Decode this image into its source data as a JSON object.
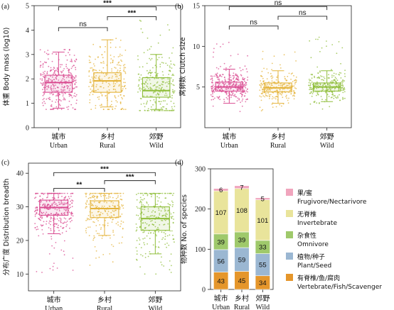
{
  "colors": {
    "urban": "#d94a90",
    "rural": "#e4b33a",
    "wild": "#8fbe3a"
  },
  "chart_data": [
    {
      "panel": "(a)",
      "type": "box",
      "ylabel": "体重 Body mass (log10)",
      "ylim": [
        0,
        5
      ],
      "yticks": [
        0,
        1,
        2,
        3,
        4,
        5
      ],
      "categories": [
        {
          "cn": "城市",
          "en": "Urban"
        },
        {
          "cn": "乡村",
          "en": "Rural"
        },
        {
          "cn": "郊野",
          "en": "Wild"
        }
      ],
      "boxes": [
        {
          "q1": 1.45,
          "median": 1.85,
          "q3": 2.15,
          "min": 0.8,
          "max": 3.1
        },
        {
          "q1": 1.45,
          "median": 1.92,
          "q3": 2.25,
          "min": 0.85,
          "max": 3.6
        },
        {
          "q1": 1.25,
          "median": 1.52,
          "q3": 2.05,
          "min": 0.75,
          "max": 3.0
        }
      ],
      "spread": [
        [
          0.75,
          3.2
        ],
        [
          0.75,
          3.7
        ],
        [
          0.7,
          4.8
        ]
      ],
      "points": [
        320,
        240,
        260
      ],
      "comparisons": [
        {
          "a": 0,
          "b": 1,
          "label": "ns",
          "y": 4.1
        },
        {
          "a": 1,
          "b": 2,
          "label": "***",
          "y": 4.55
        },
        {
          "a": 0,
          "b": 2,
          "label": "***",
          "y": 4.95
        }
      ]
    },
    {
      "panel": "(b)",
      "type": "box",
      "ylabel": "窝卵数 Clutch size",
      "ylim": [
        0,
        15
      ],
      "yticks": [
        5,
        10,
        15
      ],
      "categories": [
        {
          "cn": "城市",
          "en": "Urban"
        },
        {
          "cn": "乡村",
          "en": "Rural"
        },
        {
          "cn": "郊野",
          "en": "Wild"
        }
      ],
      "boxes": [
        {
          "q1": 4.5,
          "median": 5.0,
          "q3": 5.6,
          "min": 3.0,
          "max": 7.2
        },
        {
          "q1": 4.4,
          "median": 4.9,
          "q3": 5.5,
          "min": 3.0,
          "max": 7.0
        },
        {
          "q1": 4.5,
          "median": 5.0,
          "q3": 5.5,
          "min": 3.2,
          "max": 7.0
        }
      ],
      "spread": [
        [
          2.0,
          10.5
        ],
        [
          2.0,
          9.5
        ],
        [
          2.0,
          11.5
        ]
      ],
      "points": [
        320,
        240,
        260
      ],
      "comparisons": [
        {
          "a": 0,
          "b": 1,
          "label": "ns",
          "y": 12.5
        },
        {
          "a": 1,
          "b": 2,
          "label": "ns",
          "y": 13.7
        },
        {
          "a": 0,
          "b": 2,
          "label": "ns",
          "y": 14.9
        }
      ]
    },
    {
      "panel": "(c)",
      "type": "box",
      "ylabel": "分布广度 Distribution breadth",
      "ylim": [
        5,
        43
      ],
      "yticks": [
        10,
        20,
        30,
        40
      ],
      "categories": [
        {
          "cn": "城市",
          "en": "Urban"
        },
        {
          "cn": "乡村",
          "en": "Rural"
        },
        {
          "cn": "郊野",
          "en": "Wild"
        }
      ],
      "boxes": [
        {
          "q1": 27.5,
          "median": 29.8,
          "q3": 32.0,
          "min": 22.0,
          "max": 34.0
        },
        {
          "q1": 26.8,
          "median": 29.5,
          "q3": 31.8,
          "min": 21.5,
          "max": 34.0
        },
        {
          "q1": 23.0,
          "median": 26.5,
          "q3": 30.0,
          "min": 16.0,
          "max": 34.0
        }
      ],
      "spread": [
        [
          10,
          34
        ],
        [
          12,
          34
        ],
        [
          10,
          34
        ]
      ],
      "points": [
        320,
        240,
        260
      ],
      "comparisons": [
        {
          "a": 0,
          "b": 1,
          "label": "**",
          "y": 35.5
        },
        {
          "a": 1,
          "b": 2,
          "label": "***",
          "y": 37.8
        },
        {
          "a": 0,
          "b": 2,
          "label": "***",
          "y": 40.2
        }
      ]
    },
    {
      "panel": "(d)",
      "type": "stacked_bar",
      "ylabel": "物种数 No. of species",
      "ylim": [
        0,
        300
      ],
      "yticks": [
        0,
        100,
        200,
        300
      ],
      "categories": [
        {
          "cn": "城市",
          "en": "Urban"
        },
        {
          "cn": "乡村",
          "en": "Rural"
        },
        {
          "cn": "郊野",
          "en": "Wild"
        }
      ],
      "series": [
        {
          "name_cn": "有脊椎/鱼/腐肉",
          "name_en": "Vertebrate/Fish/Scavenger",
          "color": "#e5962b",
          "values": [
            43,
            45,
            34
          ]
        },
        {
          "name_cn": "植物/种子",
          "name_en": "Plant/Seed",
          "color": "#9bb7d2",
          "values": [
            56,
            59,
            55
          ]
        },
        {
          "name_cn": "杂食性",
          "name_en": "Omnivore",
          "color": "#9fc96b",
          "values": [
            39,
            39,
            33
          ]
        },
        {
          "name_cn": "无脊椎",
          "name_en": "Invertebrate",
          "color": "#e9e49b",
          "values": [
            107,
            108,
            101
          ]
        },
        {
          "name_cn": "果/蜜",
          "name_en": "Frugivore/Nectarivore",
          "color": "#f0a5bd",
          "values": [
            6,
            7,
            5
          ]
        }
      ]
    }
  ]
}
